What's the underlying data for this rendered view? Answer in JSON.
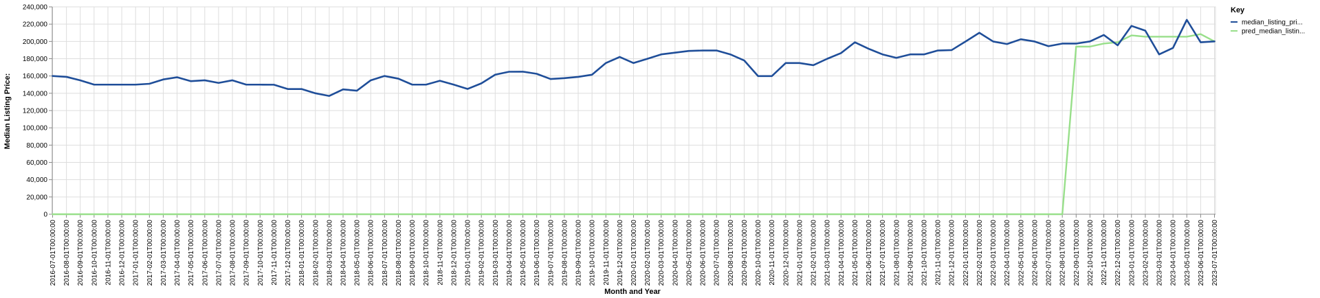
{
  "chart_data": {
    "type": "line",
    "xlabel": "Month and Year",
    "ylabel": "Median Listing Price:",
    "ylim": [
      0,
      240000
    ],
    "yticks": [
      "0",
      "20,000",
      "40,000",
      "60,000",
      "80,000",
      "100,000",
      "120,000",
      "140,000",
      "160,000",
      "180,000",
      "200,000",
      "220,000",
      "240,000"
    ],
    "grid": true,
    "legend": {
      "title": "Key",
      "position": "right"
    },
    "categories": [
      "2016-07-01T00:00:00",
      "2016-08-01T00:00:00",
      "2016-09-01T00:00:00",
      "2016-10-01T00:00:00",
      "2016-11-01T00:00:00",
      "2016-12-01T00:00:00",
      "2017-01-01T00:00:00",
      "2017-02-01T00:00:00",
      "2017-03-01T00:00:00",
      "2017-04-01T00:00:00",
      "2017-05-01T00:00:00",
      "2017-06-01T00:00:00",
      "2017-07-01T00:00:00",
      "2017-08-01T00:00:00",
      "2017-09-01T00:00:00",
      "2017-10-01T00:00:00",
      "2017-11-01T00:00:00",
      "2017-12-01T00:00:00",
      "2018-01-01T00:00:00",
      "2018-02-01T00:00:00",
      "2018-03-01T00:00:00",
      "2018-04-01T00:00:00",
      "2018-05-01T00:00:00",
      "2018-06-01T00:00:00",
      "2018-07-01T00:00:00",
      "2018-08-01T00:00:00",
      "2018-09-01T00:00:00",
      "2018-10-01T00:00:00",
      "2018-11-01T00:00:00",
      "2018-12-01T00:00:00",
      "2019-01-01T00:00:00",
      "2019-02-01T00:00:00",
      "2019-03-01T00:00:00",
      "2019-04-01T00:00:00",
      "2019-05-01T00:00:00",
      "2019-06-01T00:00:00",
      "2019-07-01T00:00:00",
      "2019-08-01T00:00:00",
      "2019-09-01T00:00:00",
      "2019-10-01T00:00:00",
      "2019-11-01T00:00:00",
      "2019-12-01T00:00:00",
      "2020-01-01T00:00:00",
      "2020-02-01T00:00:00",
      "2020-03-01T00:00:00",
      "2020-04-01T00:00:00",
      "2020-05-01T00:00:00",
      "2020-06-01T00:00:00",
      "2020-07-01T00:00:00",
      "2020-08-01T00:00:00",
      "2020-09-01T00:00:00",
      "2020-10-01T00:00:00",
      "2020-11-01T00:00:00",
      "2020-12-01T00:00:00",
      "2021-01-01T00:00:00",
      "2021-02-01T00:00:00",
      "2021-03-01T00:00:00",
      "2021-04-01T00:00:00",
      "2021-05-01T00:00:00",
      "2021-06-01T00:00:00",
      "2021-07-01T00:00:00",
      "2021-08-01T00:00:00",
      "2021-09-01T00:00:00",
      "2021-10-01T00:00:00",
      "2021-11-01T00:00:00",
      "2021-12-01T00:00:00",
      "2022-01-01T00:00:00",
      "2022-02-01T00:00:00",
      "2022-03-01T00:00:00",
      "2022-04-01T00:00:00",
      "2022-05-01T00:00:00",
      "2022-06-01T00:00:00",
      "2022-07-01T00:00:00",
      "2022-08-01T00:00:00",
      "2022-09-01T00:00:00",
      "2022-10-01T00:00:00",
      "2022-11-01T00:00:00",
      "2022-12-01T00:00:00",
      "2023-01-01T00:00:00",
      "2023-02-01T00:00:00",
      "2023-03-01T00:00:00",
      "2023-04-01T00:00:00",
      "2023-05-01T00:00:00",
      "2023-06-01T00:00:00",
      "2023-07-01T00:00:00"
    ],
    "series": [
      {
        "name": "median_listing_pri...",
        "color": "#1f4e99",
        "values": [
          160000,
          159000,
          155000,
          150000,
          150000,
          150000,
          150000,
          151000,
          156000,
          158500,
          154000,
          155000,
          152000,
          155000,
          150000,
          150000,
          149900,
          144900,
          144900,
          140000,
          136900,
          144500,
          143000,
          155000,
          160000,
          156900,
          150000,
          150000,
          154500,
          150000,
          145000,
          151500,
          161500,
          164900,
          165000,
          162500,
          156500,
          157500,
          159000,
          161500,
          175000,
          182000,
          175000,
          179900,
          185000,
          187000,
          189000,
          189500,
          189500,
          185000,
          178000,
          159900,
          159900,
          175000,
          175000,
          172500,
          179900,
          186500,
          199000,
          191500,
          185000,
          181000,
          185000,
          185000,
          189500,
          190000,
          199900,
          210000,
          199900,
          197000,
          202500,
          199900,
          194500,
          197500,
          197500,
          200000,
          207500,
          195500,
          218000,
          212500,
          185000,
          192500,
          225000,
          199000,
          200000
        ]
      },
      {
        "name": "pred_median_listin...",
        "color": "#98df8a",
        "values": [
          0,
          0,
          0,
          0,
          0,
          0,
          0,
          0,
          0,
          0,
          0,
          0,
          0,
          0,
          0,
          0,
          0,
          0,
          0,
          0,
          0,
          0,
          0,
          0,
          0,
          0,
          0,
          0,
          0,
          0,
          0,
          0,
          0,
          0,
          0,
          0,
          0,
          0,
          0,
          0,
          0,
          0,
          0,
          0,
          0,
          0,
          0,
          0,
          0,
          0,
          0,
          0,
          0,
          0,
          0,
          0,
          0,
          0,
          0,
          0,
          0,
          0,
          0,
          0,
          0,
          0,
          0,
          0,
          0,
          0,
          0,
          0,
          0,
          0,
          194000,
          194000,
          197500,
          199000,
          207000,
          205500,
          205500,
          205500,
          205500,
          208500,
          200000
        ]
      }
    ]
  }
}
